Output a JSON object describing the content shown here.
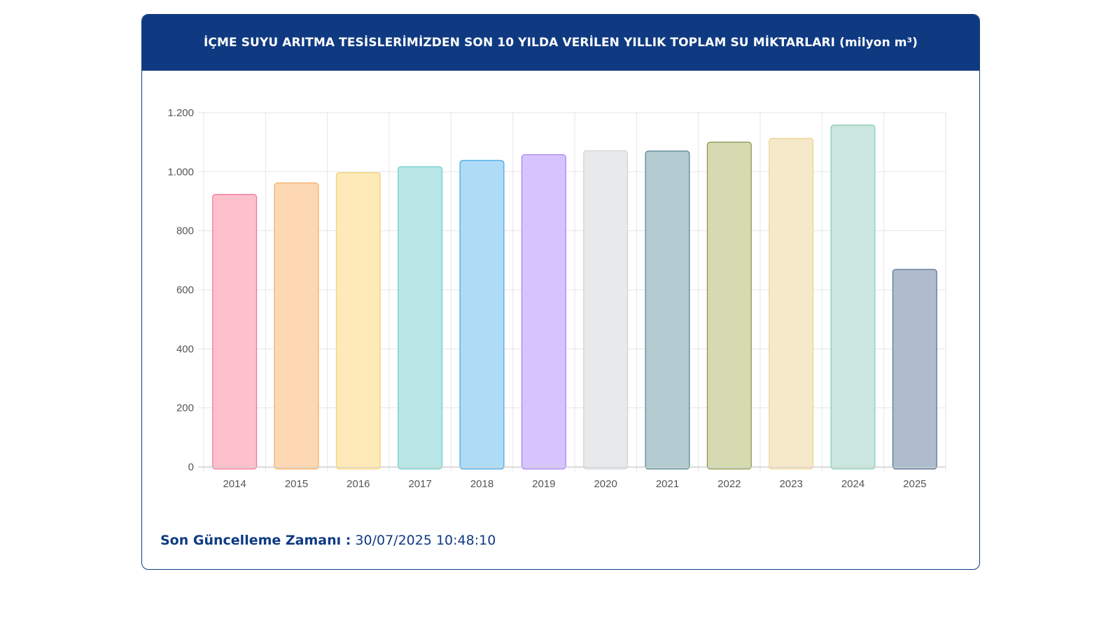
{
  "header": {
    "title": "İÇME SUYU ARITMA TESİSLERİMİZDEN SON 10 YILDA VERİLEN YILLIK TOPLAM SU MİKTARLARI (milyon m³)"
  },
  "footer": {
    "label": "Son Güncelleme Zamanı :",
    "value": "30/07/2025 10:48:10"
  },
  "chart_data": {
    "type": "bar",
    "title": "İÇME SUYU ARITMA TESİSLERİMİZDEN SON 10 YILDA VERİLEN YILLIK TOPLAM SU MİKTARLARI (milyon m³)",
    "xlabel": "",
    "ylabel": "",
    "categories": [
      "2014",
      "2015",
      "2016",
      "2017",
      "2018",
      "2019",
      "2020",
      "2021",
      "2022",
      "2023",
      "2024",
      "2025"
    ],
    "values": [
      923,
      962,
      997,
      1017,
      1038,
      1058,
      1071,
      1070,
      1100,
      1113,
      1158,
      669
    ],
    "ylim": [
      0,
      1200
    ],
    "yticks": [
      0,
      200,
      400,
      600,
      800,
      1000,
      1200
    ],
    "ytick_labels": [
      "0",
      "200",
      "400",
      "600",
      "800",
      "1.000",
      "1.200"
    ],
    "grid": true,
    "legend": "none",
    "bar_fills": [
      "#ffc0cd",
      "#fdd8b3",
      "#feeab8",
      "#b9e6e6",
      "#b0dbf6",
      "#d7c4fe",
      "#e8e9eb",
      "#b3cbd1",
      "#d6dab1",
      "#f6e9c9",
      "#cbe6df",
      "#aebccd"
    ],
    "bar_strokes": [
      "#f07b97",
      "#f4ad68",
      "#f7d27a",
      "#6fcfcf",
      "#4aa9e6",
      "#ad83f5",
      "#d2d4d7",
      "#5d8893",
      "#8d9650",
      "#eed596",
      "#8ccdba",
      "#5d7595"
    ]
  }
}
